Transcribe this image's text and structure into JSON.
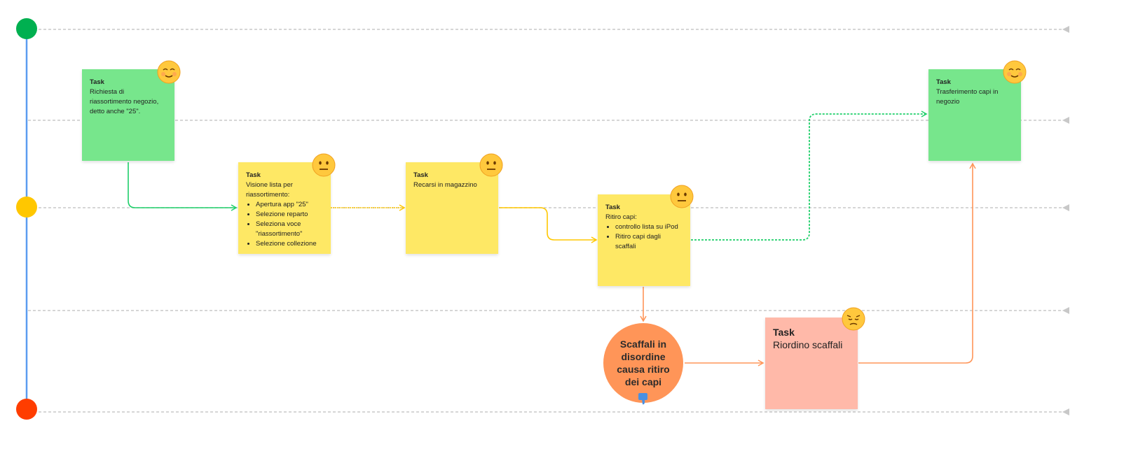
{
  "colors": {
    "timeline": "#5b9cf0",
    "positive": "#00b050",
    "neutral": "#ffc700",
    "negative": "#ff3d00",
    "green_sticky": "#77e68c",
    "yellow_sticky": "#fee865",
    "pink_sticky": "#ffb9a9",
    "pain_point": "#ff9558"
  },
  "tasks": [
    {
      "title": "Task",
      "text": "Richiesta di riassortimento negozio, detto anche \"25\".",
      "emotion": "relieved-face-icon"
    },
    {
      "title": "Task",
      "text": "Visione lista per riassortimento:",
      "bullets": [
        "Apertura app \"25\"",
        "Selezione reparto",
        "Seleziona voce \"riassortimento\"",
        "Selezione collezione"
      ],
      "emotion": "neutral-face-icon"
    },
    {
      "title": "Task",
      "text": "Recarsi in magazzino",
      "emotion": "neutral-face-icon"
    },
    {
      "title": "Task",
      "text": "Ritiro capi:",
      "bullets": [
        "controllo lista su iPod",
        "Ritiro capi dagli scaffali"
      ],
      "emotion": "neutral-face-icon"
    },
    {
      "title": "Task",
      "text": "Trasferimento capi in negozio",
      "emotion": "relieved-face-icon"
    },
    {
      "title": "Task",
      "text": "Riordino scaffali",
      "emotion": "pensive-face-icon"
    }
  ],
  "pain_point": {
    "text": "Scaffali in disordine causa ritiro dei capi",
    "icon": "thumbs-down-icon"
  }
}
